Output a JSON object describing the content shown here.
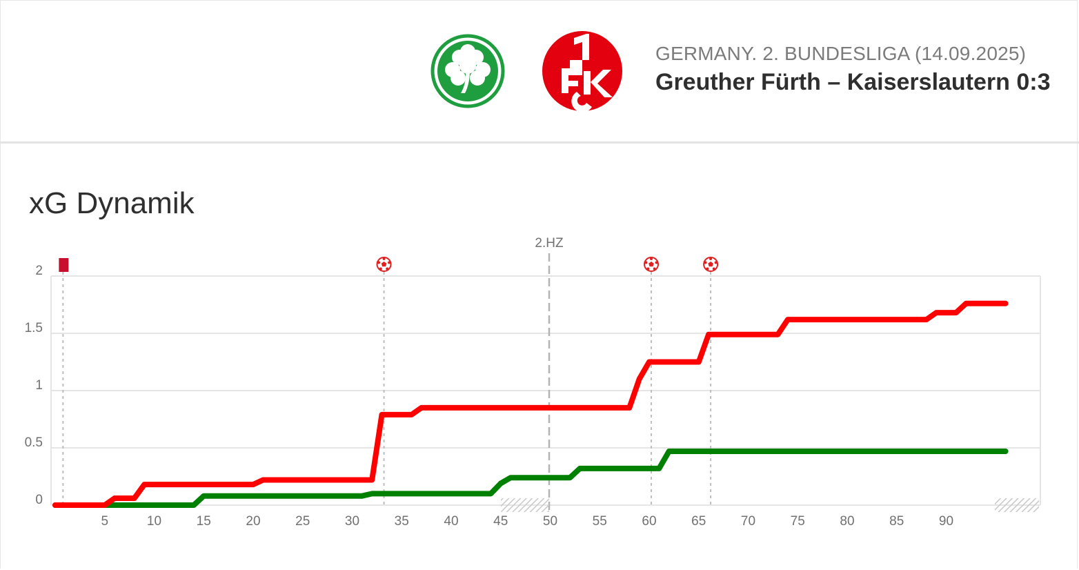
{
  "header": {
    "league": "GERMANY. 2. BUNDESLIGA (14.09.2025)",
    "match": "Greuther Fürth – Kaiserslautern 0:3",
    "home_logo_icon": "cloverleaf-crest-icon",
    "away_logo_icon": "1fck-crest-icon"
  },
  "section_title": "xG Dynamik",
  "colors": {
    "home": "#008000",
    "away": "#ff0000",
    "home_crest": "#1f9e3f",
    "away_crest": "#e3000f",
    "red_card": "#c8102e",
    "grid": "#e5e5e5"
  },
  "chart_data": {
    "type": "line",
    "title": "xG Dynamik",
    "xlabel": "",
    "ylabel": "",
    "x_ticks": [
      5,
      10,
      15,
      20,
      25,
      30,
      35,
      40,
      45,
      50,
      55,
      60,
      65,
      70,
      75,
      80,
      85,
      90
    ],
    "y_ticks": [
      0,
      0.5,
      1,
      1.5,
      2
    ],
    "ylim": [
      0,
      2
    ],
    "second_half_label": "2.HZ",
    "grid": true,
    "series": [
      {
        "team": "Kaiserslautern",
        "color": "#ff0000",
        "points": [
          [
            0,
            0
          ],
          [
            5,
            0
          ],
          [
            6,
            0.06
          ],
          [
            8,
            0.06
          ],
          [
            9,
            0.18
          ],
          [
            20,
            0.18
          ],
          [
            21,
            0.22
          ],
          [
            32,
            0.22
          ],
          [
            33,
            0.79
          ],
          [
            36,
            0.79
          ],
          [
            37,
            0.85
          ],
          [
            58,
            0.85
          ],
          [
            59,
            1.1
          ],
          [
            60,
            1.25
          ],
          [
            65,
            1.25
          ],
          [
            66,
            1.49
          ],
          [
            73,
            1.49
          ],
          [
            74,
            1.62
          ],
          [
            88,
            1.62
          ],
          [
            89,
            1.68
          ],
          [
            91,
            1.68
          ],
          [
            92,
            1.76
          ],
          [
            96,
            1.76
          ]
        ]
      },
      {
        "team": "Greuther Fürth",
        "color": "#008000",
        "points": [
          [
            0,
            0
          ],
          [
            14,
            0
          ],
          [
            15,
            0.08
          ],
          [
            31,
            0.08
          ],
          [
            32,
            0.1
          ],
          [
            44,
            0.1
          ],
          [
            45,
            0.19
          ],
          [
            46,
            0.24
          ],
          [
            52,
            0.24
          ],
          [
            53,
            0.32
          ],
          [
            61,
            0.32
          ],
          [
            62,
            0.47
          ],
          [
            96,
            0.47
          ]
        ]
      }
    ],
    "events": [
      {
        "minute": 1,
        "type": "red-card",
        "icon": "red-card-icon"
      },
      {
        "minute": 33,
        "type": "goal",
        "icon": "football-icon"
      },
      {
        "minute": 60,
        "type": "goal",
        "icon": "football-icon"
      },
      {
        "minute": 66,
        "type": "goal",
        "icon": "football-icon"
      }
    ]
  }
}
